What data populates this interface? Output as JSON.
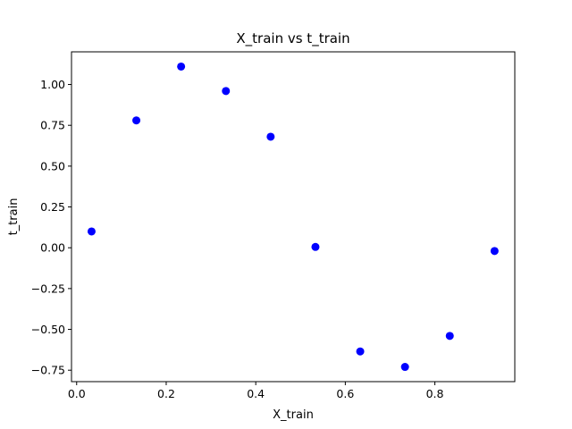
{
  "chart_data": {
    "type": "scatter",
    "title": "X_train vs t_train",
    "xlabel": "X_train",
    "ylabel": "t_train",
    "xlim": [
      -0.0115,
      0.9785
    ],
    "ylim": [
      -0.82,
      1.2
    ],
    "xticks": [
      0.0,
      0.2,
      0.4,
      0.6,
      0.8
    ],
    "xtick_labels": [
      "0.0",
      "0.2",
      "0.4",
      "0.6",
      "0.8"
    ],
    "yticks": [
      -0.75,
      -0.5,
      -0.25,
      0.0,
      0.25,
      0.5,
      0.75,
      1.0
    ],
    "ytick_labels": [
      "−0.75",
      "−0.50",
      "−0.25",
      "0.00",
      "0.25",
      "0.50",
      "0.75",
      "1.00"
    ],
    "grid": false,
    "marker_color": "#0000ff",
    "series": [
      {
        "x": [
          0.0333,
          0.1333,
          0.2333,
          0.3333,
          0.4333,
          0.5333,
          0.6333,
          0.7333,
          0.8333,
          0.9333
        ],
        "y": [
          0.1,
          0.78,
          1.11,
          0.96,
          0.68,
          0.005,
          -0.635,
          -0.73,
          -0.54,
          -0.02
        ]
      }
    ]
  }
}
